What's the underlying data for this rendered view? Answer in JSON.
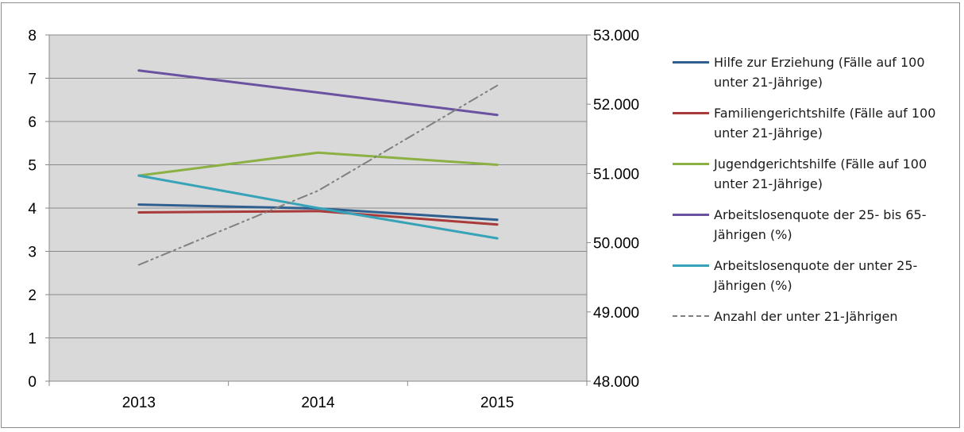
{
  "chart_data": {
    "type": "line",
    "categories": [
      "2013",
      "2014",
      "2015"
    ],
    "y_left": {
      "min": 0,
      "max": 8,
      "ticks": [
        "0",
        "1",
        "2",
        "3",
        "4",
        "5",
        "6",
        "7",
        "8"
      ]
    },
    "y_right": {
      "min": 48000,
      "max": 53000,
      "ticks": [
        "48.000",
        "49.000",
        "50.000",
        "51.000",
        "52.000",
        "53.000"
      ]
    },
    "grid": true,
    "plot_background": "#d9d9d9",
    "legend_position": "right",
    "series": [
      {
        "name": "Hilfe zur Erziehung (Fälle auf 100 unter 21-Jährige)",
        "axis": "left",
        "color": "#2e5f8f",
        "values": [
          4.08,
          3.99,
          3.73
        ]
      },
      {
        "name": "Familiengerichtshilfe (Fälle auf 100 unter 21-Jährige)",
        "axis": "left",
        "color": "#a83a3a",
        "values": [
          3.9,
          3.93,
          3.62
        ]
      },
      {
        "name": "Jugendgerichtshilfe (Fälle auf 100 unter 21-Jährige)",
        "axis": "left",
        "color": "#8bb043",
        "values": [
          4.75,
          5.28,
          5.0
        ]
      },
      {
        "name": "Arbeitslosenquote der 25- bis 65-Jährigen (%)",
        "axis": "left",
        "color": "#6a52a0",
        "values": [
          7.18,
          6.67,
          6.15
        ]
      },
      {
        "name": "Arbeitslosenquote der unter 25-Jährigen (%)",
        "axis": "left",
        "color": "#36a3b8",
        "values": [
          4.75,
          4.0,
          3.3
        ]
      },
      {
        "name": "Anzahl der unter 21-Jährigen",
        "axis": "right",
        "color": "#7f7f7f",
        "dashed": true,
        "values": [
          49680,
          50750,
          52270
        ]
      }
    ]
  }
}
